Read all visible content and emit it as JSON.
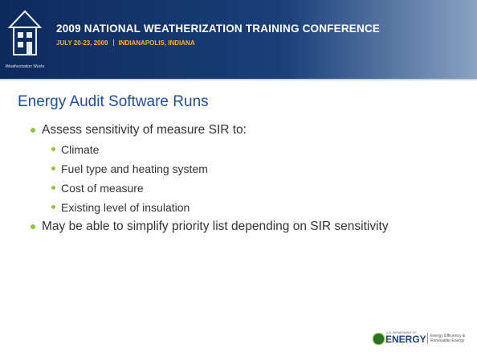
{
  "header": {
    "logo_text": "Weatherization Works",
    "title": "2009 NATIONAL WEATHERIZATION TRAINING CONFERENCE",
    "dates": "JULY 20-23, 2009",
    "location": "INDIANAPOLIS, INDIANA"
  },
  "slide": {
    "title": "Energy Audit Software Runs",
    "bullets": [
      {
        "text": "Assess sensitivity of measure SIR to:",
        "sub": [
          "Climate",
          "Fuel type and heating system",
          "Cost of measure",
          "Existing level of insulation"
        ]
      },
      {
        "text": "May be able to simplify priority list depending on SIR sensitivity"
      }
    ]
  },
  "footer": {
    "department": "U.S. DEPARTMENT OF",
    "agency_name": "ENERGY",
    "agency_subtitle": "Energy Efficiency & Renewable Energy"
  }
}
